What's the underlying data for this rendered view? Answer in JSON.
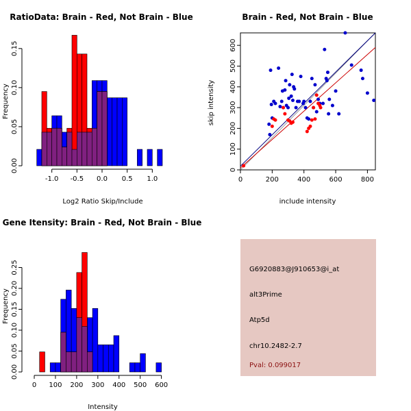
{
  "chart_data": [
    {
      "type": "histogram",
      "title": "RatioData: Brain - Red, Not Brain - Blue",
      "xlabel": "Log2 Ratio Skip/Include",
      "ylabel": "Frequency",
      "xlim": [
        -1.35,
        1.35
      ],
      "ylim": [
        0,
        0.17
      ],
      "xticks": [
        "-1.0",
        "-0.5",
        "0.0",
        "0.5",
        "1.0"
      ],
      "xtick_values": [
        -1.0,
        -0.5,
        0.0,
        0.5,
        1.0
      ],
      "yticks": [
        "0.00",
        "0.05",
        "0.10",
        "0.15"
      ],
      "ytick_values": [
        0,
        0.05,
        0.1,
        0.15
      ],
      "bin_width": 0.1,
      "series": [
        {
          "name": "Not Brain",
          "color": "#0000ff",
          "bins": [
            [
              -1.3,
              0.021
            ],
            [
              -1.2,
              0.043
            ],
            [
              -1.1,
              0.043
            ],
            [
              -1.0,
              0.064
            ],
            [
              -0.9,
              0.064
            ],
            [
              -0.8,
              0.043
            ],
            [
              -0.7,
              0.043
            ],
            [
              -0.6,
              0.021
            ],
            [
              -0.5,
              0.043
            ],
            [
              -0.4,
              0.043
            ],
            [
              -0.3,
              0.043
            ],
            [
              -0.2,
              0.109
            ],
            [
              -0.1,
              0.109
            ],
            [
              0.0,
              0.109
            ],
            [
              0.1,
              0.087
            ],
            [
              0.2,
              0.087
            ],
            [
              0.3,
              0.087
            ],
            [
              0.4,
              0.087
            ],
            [
              0.7,
              0.021
            ],
            [
              0.9,
              0.021
            ],
            [
              1.1,
              0.021
            ]
          ]
        },
        {
          "name": "Brain",
          "color": "#ff0000",
          "bins": [
            [
              -1.2,
              0.095
            ],
            [
              -1.1,
              0.048
            ],
            [
              -1.0,
              0.048
            ],
            [
              -0.9,
              0.048
            ],
            [
              -0.8,
              0.024
            ],
            [
              -0.7,
              0.048
            ],
            [
              -0.6,
              0.167
            ],
            [
              -0.5,
              0.143
            ],
            [
              -0.4,
              0.143
            ],
            [
              -0.3,
              0.048
            ],
            [
              -0.2,
              0.048
            ],
            [
              -0.1,
              0.095
            ],
            [
              0.0,
              0.095
            ]
          ]
        }
      ]
    },
    {
      "type": "scatter",
      "title": "Brain - Red, Not Brain - Blue",
      "xlabel": "include intensity",
      "ylabel": "skip intensity",
      "xlim": [
        0,
        850
      ],
      "ylim": [
        0,
        660
      ],
      "xticks": [
        "0",
        "200",
        "400",
        "600",
        "800"
      ],
      "xtick_values": [
        0,
        200,
        400,
        600,
        800
      ],
      "yticks": [
        "0",
        "100",
        "200",
        "300",
        "400",
        "500",
        "600"
      ],
      "ytick_values": [
        0,
        100,
        200,
        300,
        400,
        500,
        600
      ],
      "series": [
        {
          "name": "Not Brain",
          "color": "#0000cc",
          "points": [
            [
              180,
              220
            ],
            [
              185,
              170
            ],
            [
              190,
              480
            ],
            [
              195,
              315
            ],
            [
              200,
              250
            ],
            [
              210,
              330
            ],
            [
              220,
              320
            ],
            [
              240,
              490
            ],
            [
              250,
              305
            ],
            [
              260,
              330
            ],
            [
              265,
              380
            ],
            [
              270,
              300
            ],
            [
              280,
              385
            ],
            [
              285,
              430
            ],
            [
              290,
              310
            ],
            [
              300,
              300
            ],
            [
              305,
              345
            ],
            [
              310,
              410
            ],
            [
              320,
              355
            ],
            [
              325,
              460
            ],
            [
              330,
              335
            ],
            [
              335,
              400
            ],
            [
              340,
              390
            ],
            [
              350,
              300
            ],
            [
              360,
              330
            ],
            [
              370,
              330
            ],
            [
              380,
              450
            ],
            [
              395,
              320
            ],
            [
              400,
              330
            ],
            [
              410,
              300
            ],
            [
              420,
              250
            ],
            [
              430,
              245
            ],
            [
              440,
              330
            ],
            [
              450,
              440
            ],
            [
              460,
              300
            ],
            [
              470,
              410
            ],
            [
              480,
              280
            ],
            [
              490,
              340
            ],
            [
              500,
              320
            ],
            [
              520,
              320
            ],
            [
              530,
              580
            ],
            [
              540,
              440
            ],
            [
              545,
              430
            ],
            [
              550,
              470
            ],
            [
              555,
              270
            ],
            [
              560,
              340
            ],
            [
              580,
              310
            ],
            [
              600,
              380
            ],
            [
              620,
              270
            ],
            [
              660,
              660
            ],
            [
              700,
              505
            ],
            [
              760,
              480
            ],
            [
              770,
              440
            ],
            [
              800,
              370
            ],
            [
              840,
              335
            ]
          ]
        },
        {
          "name": "Brain",
          "color": "#ff0000",
          "points": [
            [
              20,
              20
            ],
            [
              200,
              210
            ],
            [
              210,
              245
            ],
            [
              220,
              240
            ],
            [
              270,
              300
            ],
            [
              280,
              270
            ],
            [
              300,
              240
            ],
            [
              310,
              235
            ],
            [
              320,
              225
            ],
            [
              330,
              230
            ],
            [
              420,
              185
            ],
            [
              430,
              200
            ],
            [
              440,
              210
            ],
            [
              450,
              240
            ],
            [
              460,
              300
            ],
            [
              470,
              245
            ],
            [
              480,
              360
            ],
            [
              490,
              320
            ],
            [
              500,
              310
            ],
            [
              505,
              300
            ]
          ]
        }
      ],
      "fit_lines": [
        {
          "name": "Not Brain fit",
          "color": "#00007f",
          "from": [
            0,
            18
          ],
          "to": [
            850,
            680
          ]
        },
        {
          "name": "Brain fit",
          "color": "#cc0000",
          "from": [
            0,
            10
          ],
          "to": [
            850,
            590
          ]
        }
      ],
      "reference_line": {
        "color": "#808080",
        "from": [
          0,
          0
        ],
        "to": [
          850,
          660
        ]
      }
    },
    {
      "type": "histogram",
      "title": "Gene Itensity: Brain - Red, Not Brain - Blue",
      "xlabel": "Intensity",
      "ylabel": "Frequency",
      "xlim": [
        0,
        640
      ],
      "ylim": [
        0,
        0.3
      ],
      "xticks": [
        "0",
        "100",
        "200",
        "300",
        "400",
        "500",
        "600"
      ],
      "xtick_values": [
        0,
        100,
        200,
        300,
        400,
        500,
        600
      ],
      "yticks": [
        "0.00",
        "0.05",
        "0.10",
        "0.15",
        "0.20",
        "0.25"
      ],
      "ytick_values": [
        0,
        0.05,
        0.1,
        0.15,
        0.2,
        0.25
      ],
      "bin_width": 25,
      "series": [
        {
          "name": "Not Brain",
          "color": "#0000ff",
          "bins": [
            [
              75,
              0.022
            ],
            [
              100,
              0.022
            ],
            [
              125,
              0.174
            ],
            [
              150,
              0.196
            ],
            [
              175,
              0.152
            ],
            [
              200,
              0.13
            ],
            [
              225,
              0.109
            ],
            [
              250,
              0.13
            ],
            [
              275,
              0.152
            ],
            [
              300,
              0.065
            ],
            [
              325,
              0.065
            ],
            [
              350,
              0.065
            ],
            [
              375,
              0.087
            ],
            [
              450,
              0.022
            ],
            [
              475,
              0.022
            ],
            [
              500,
              0.044
            ],
            [
              575,
              0.022
            ]
          ]
        },
        {
          "name": "Brain",
          "color": "#ff0000",
          "bins": [
            [
              25,
              0.048
            ],
            [
              125,
              0.095
            ],
            [
              150,
              0.048
            ],
            [
              175,
              0.048
            ],
            [
              200,
              0.238
            ],
            [
              225,
              0.286
            ],
            [
              250,
              0.048
            ]
          ]
        }
      ]
    }
  ],
  "info_panel": {
    "background": "#e6c8c2",
    "probe_id": "G6920883@J910653@i_at",
    "event_type": "alt3Prime",
    "gene": "Atp5d",
    "location": "chr10.2482-2.7",
    "pval": "Pval: 0.099017"
  }
}
